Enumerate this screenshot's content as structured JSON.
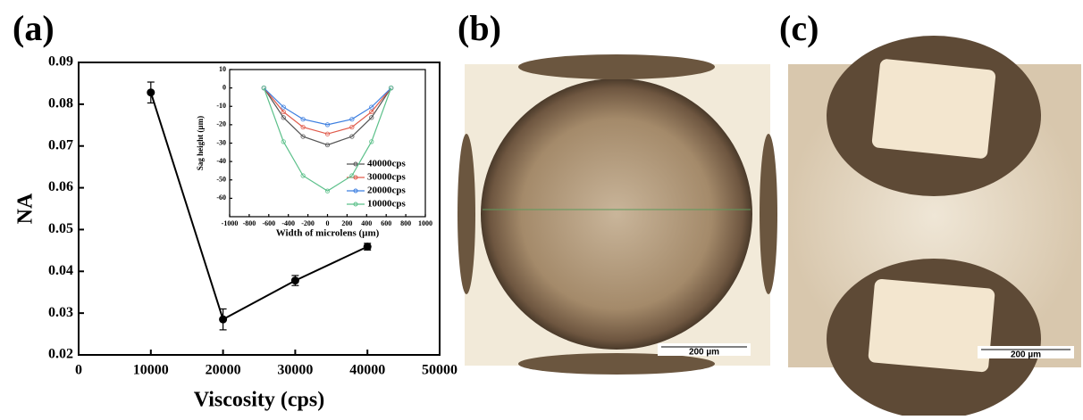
{
  "chart_data": [
    {
      "type": "line",
      "panel": "(a)",
      "x_label": "Viscosity (cps)",
      "y_label": "NA",
      "x": [
        10000,
        20000,
        30000,
        40000
      ],
      "values": [
        0.0828,
        0.0285,
        0.0378,
        0.0459
      ],
      "errors": [
        0.0025,
        0.0025,
        0.0012,
        0.0008
      ],
      "color": "#000000",
      "xlim": [
        0,
        50000
      ],
      "xticks": [
        0,
        10000,
        20000,
        30000,
        40000,
        50000
      ],
      "ylim": [
        0.02,
        0.09
      ],
      "yticks": [
        0.02,
        0.03,
        0.04,
        0.05,
        0.06,
        0.07,
        0.08,
        0.09
      ]
    },
    {
      "type": "line",
      "x_label": "Width of microlens (µm)",
      "y_label": "Sag height (µm)",
      "x": [
        -650,
        -450,
        -250,
        0,
        250,
        450,
        650
      ],
      "series": [
        {
          "name": "40000cps",
          "color": "#555555",
          "values": [
            0,
            -16.1,
            -26.4,
            -31,
            -26.4,
            -16.1,
            0
          ]
        },
        {
          "name": "30000cps",
          "color": "#e05a4a",
          "values": [
            0,
            -13.0,
            -21.3,
            -25,
            -21.3,
            -13.0,
            0
          ]
        },
        {
          "name": "20000cps",
          "color": "#3d7fe0",
          "values": [
            0,
            -10.4,
            -17.0,
            -20,
            -17.0,
            -10.4,
            0
          ]
        },
        {
          "name": "10000cps",
          "color": "#5cc08a",
          "values": [
            0,
            -29.2,
            -47.7,
            -56,
            -47.7,
            -29.2,
            0
          ]
        }
      ],
      "xlim": [
        -1000,
        1000
      ],
      "xticks": [
        -1000,
        -800,
        -600,
        -400,
        -200,
        0,
        200,
        400,
        600,
        800,
        1000
      ],
      "ylim": [
        -70,
        10
      ],
      "yticks": [
        -60,
        -50,
        -40,
        -30,
        -20,
        -10,
        0,
        10
      ],
      "legend": "lower right"
    }
  ],
  "panels": [
    {
      "label": "(b)",
      "scale_bar": "200 µm"
    },
    {
      "label": "(c)",
      "scale_bar": "200 µm"
    }
  ]
}
